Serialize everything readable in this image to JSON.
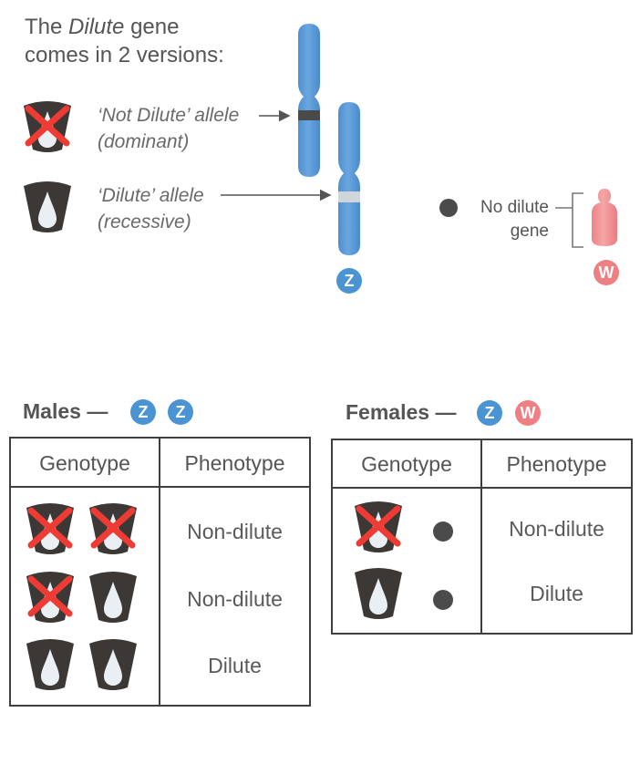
{
  "intro": {
    "line1_prefix": "The",
    "line1_italic": "Dilute",
    "line1_suffix": "gene",
    "line2": "comes in 2 versions:"
  },
  "alleles": [
    {
      "label_line1": "‘Not Dilute’ allele",
      "label_line2": "(dominant)",
      "icon": "not-dilute-allele-icon"
    },
    {
      "label_line1": "‘Dilute’ allele",
      "label_line2": "(recessive)",
      "icon": "dilute-allele-icon"
    }
  ],
  "no_gene": {
    "line1": "No dilute",
    "line2": "gene",
    "icon": "no-gene-dot-icon"
  },
  "chromosomes": {
    "z_label": "Z",
    "w_label": "W",
    "z_color": "#5b9bd8",
    "w_color": "#f08f91"
  },
  "colors": {
    "cross_red": "#ee3b33",
    "icon_dark": "#3a3a3a",
    "drop": "#e8eef2",
    "table_border": "#3f3f3f"
  },
  "males": {
    "title": "Males —",
    "chromosome_badges": [
      "Z",
      "Z"
    ],
    "header": {
      "genotype": "Genotype",
      "phenotype": "Phenotype"
    },
    "rows": [
      {
        "genotype": [
          "not-dilute",
          "not-dilute"
        ],
        "phenotype": "Non-dilute"
      },
      {
        "genotype": [
          "not-dilute",
          "dilute"
        ],
        "phenotype": "Non-dilute"
      },
      {
        "genotype": [
          "dilute",
          "dilute"
        ],
        "phenotype": "Dilute"
      }
    ]
  },
  "females": {
    "title": "Females —",
    "chromosome_badges": [
      "Z",
      "W"
    ],
    "header": {
      "genotype": "Genotype",
      "phenotype": "Phenotype"
    },
    "rows": [
      {
        "genotype": [
          "not-dilute",
          "none"
        ],
        "phenotype": "Non-dilute"
      },
      {
        "genotype": [
          "dilute",
          "none"
        ],
        "phenotype": "Dilute"
      }
    ]
  }
}
